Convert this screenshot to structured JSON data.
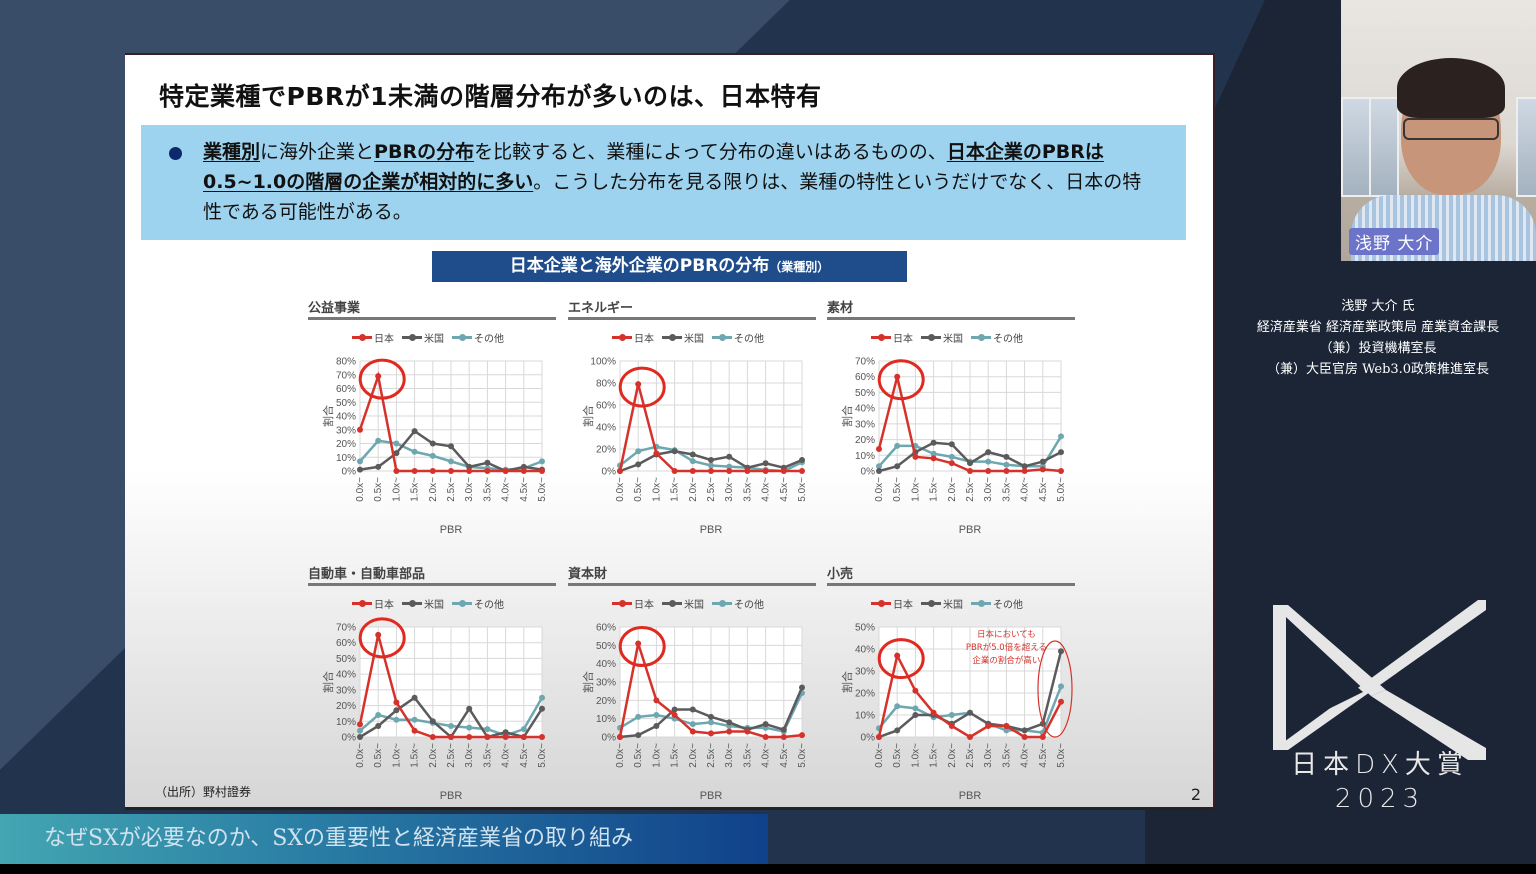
{
  "slide": {
    "title": "特定業種でPBRが1未満の階層分布が多いのは、日本特有",
    "callout": {
      "seg1_bold": "業種別",
      "seg2": "に海外企業と",
      "seg3_bold": "PBRの分布",
      "seg4": "を比較すると、業種によって分布の違いはあるものの、",
      "seg5_bold": "日本企業のPBRは0.5~1.0の階層の企業が相対的に多い",
      "seg6": "。こうした分布を見る限りは、業種の特性というだけでなく、日本の特性である可能性がある。"
    },
    "chart_banner": "日本企業と海外企業のPBRの分布",
    "chart_banner_small": "（業種別）",
    "source": "（出所）野村證券",
    "page_number": "2"
  },
  "chart_data": [
    {
      "type": "line",
      "title": "公益事業",
      "xlabel": "PBR",
      "ylabel": "割合",
      "ylim": [
        0,
        80
      ],
      "yticks": [
        0,
        10,
        20,
        30,
        40,
        50,
        60,
        70,
        80
      ],
      "categories": [
        "0.0x~",
        "0.5x~",
        "1.0x~",
        "1.5x~",
        "2.0x~",
        "2.5x~",
        "3.0x~",
        "3.5x~",
        "4.0x~",
        "4.5x~",
        "5.0x~"
      ],
      "series": [
        {
          "name": "日本",
          "color": "#d6322c",
          "values": [
            30,
            69,
            0,
            0,
            0,
            0,
            0,
            0,
            0,
            0,
            0
          ]
        },
        {
          "name": "米国",
          "color": "#5b5b5b",
          "values": [
            1,
            3,
            13,
            29,
            20,
            18,
            3,
            6,
            0,
            3,
            1
          ]
        },
        {
          "name": "その他",
          "color": "#6ea7b0",
          "values": [
            7,
            22,
            20,
            14,
            11,
            7,
            3,
            2,
            1,
            2,
            7
          ]
        }
      ],
      "highlight_index": 1
    },
    {
      "type": "line",
      "title": "エネルギー",
      "xlabel": "PBR",
      "ylabel": "割合",
      "ylim": [
        0,
        100
      ],
      "yticks": [
        0,
        20,
        40,
        60,
        80,
        100
      ],
      "categories": [
        "0.0x~",
        "0.5x~",
        "1.0x~",
        "1.5x~",
        "2.0x~",
        "2.5x~",
        "3.0x~",
        "3.5x~",
        "4.0x~",
        "4.5x~",
        "5.0x~"
      ],
      "series": [
        {
          "name": "日本",
          "color": "#d6322c",
          "values": [
            0,
            79,
            16,
            0,
            0,
            0,
            0,
            0,
            0,
            0,
            0
          ]
        },
        {
          "name": "米国",
          "color": "#5b5b5b",
          "values": [
            0,
            6,
            15,
            18,
            15,
            10,
            13,
            3,
            7,
            3,
            10
          ]
        },
        {
          "name": "その他",
          "color": "#6ea7b0",
          "values": [
            5,
            18,
            22,
            19,
            9,
            5,
            4,
            3,
            1,
            0,
            8
          ]
        }
      ],
      "highlight_index": 1
    },
    {
      "type": "line",
      "title": "素材",
      "xlabel": "PBR",
      "ylabel": "割合",
      "ylim": [
        0,
        70
      ],
      "yticks": [
        0,
        10,
        20,
        30,
        40,
        50,
        60,
        70
      ],
      "categories": [
        "0.0x~",
        "0.5x~",
        "1.0x~",
        "1.5x~",
        "2.0x~",
        "2.5x~",
        "3.0x~",
        "3.5x~",
        "4.0x~",
        "4.5x~",
        "5.0x~"
      ],
      "series": [
        {
          "name": "日本",
          "color": "#d6322c",
          "values": [
            14,
            60,
            9,
            8,
            5,
            0,
            0,
            0,
            0,
            1,
            0
          ]
        },
        {
          "name": "米国",
          "color": "#5b5b5b",
          "values": [
            0,
            3,
            12,
            18,
            17,
            5,
            12,
            9,
            3,
            6,
            12
          ]
        },
        {
          "name": "その他",
          "color": "#6ea7b0",
          "values": [
            3,
            16,
            16,
            11,
            9,
            6,
            6,
            4,
            3,
            3,
            22
          ]
        }
      ],
      "highlight_index": 1
    },
    {
      "type": "line",
      "title": "自動車・自動車部品",
      "xlabel": "PBR",
      "ylabel": "割合",
      "ylim": [
        0,
        70
      ],
      "yticks": [
        0,
        10,
        20,
        30,
        40,
        50,
        60,
        70
      ],
      "categories": [
        "0.0x~",
        "0.5x~",
        "1.0x~",
        "1.5x~",
        "2.0x~",
        "2.5x~",
        "3.0x~",
        "3.5x~",
        "4.0x~",
        "4.5x~",
        "5.0x~"
      ],
      "series": [
        {
          "name": "日本",
          "color": "#d6322c",
          "values": [
            8,
            65,
            22,
            4,
            0,
            0,
            0,
            0,
            0,
            0,
            0
          ]
        },
        {
          "name": "米国",
          "color": "#5b5b5b",
          "values": [
            0,
            7,
            17,
            25,
            10,
            0,
            18,
            0,
            3,
            0,
            18
          ]
        },
        {
          "name": "その他",
          "color": "#6ea7b0",
          "values": [
            4,
            14,
            11,
            11,
            9,
            7,
            6,
            5,
            1,
            5,
            25
          ]
        }
      ],
      "highlight_index": 1
    },
    {
      "type": "line",
      "title": "資本財",
      "xlabel": "PBR",
      "ylabel": "割合",
      "ylim": [
        0,
        60
      ],
      "yticks": [
        0,
        10,
        20,
        30,
        40,
        50,
        60
      ],
      "categories": [
        "0.0x~",
        "0.5x~",
        "1.0x~",
        "1.5x~",
        "2.0x~",
        "2.5x~",
        "3.0x~",
        "3.5x~",
        "4.0x~",
        "4.5x~",
        "5.0x~"
      ],
      "series": [
        {
          "name": "日本",
          "color": "#d6322c",
          "values": [
            0,
            51,
            20,
            12,
            3,
            2,
            3,
            3,
            0,
            0,
            1
          ]
        },
        {
          "name": "米国",
          "color": "#5b5b5b",
          "values": [
            0,
            1,
            6,
            15,
            15,
            11,
            8,
            4,
            7,
            4,
            27
          ]
        },
        {
          "name": "その他",
          "color": "#6ea7b0",
          "values": [
            5,
            11,
            12,
            10,
            7,
            8,
            6,
            5,
            5,
            3,
            24
          ]
        }
      ],
      "highlight_index": 1
    },
    {
      "type": "line",
      "title": "小売",
      "xlabel": "PBR",
      "ylabel": "割合",
      "ylim": [
        0,
        50
      ],
      "yticks": [
        0,
        10,
        20,
        30,
        40,
        50
      ],
      "categories": [
        "0.0x~",
        "0.5x~",
        "1.0x~",
        "1.5x~",
        "2.0x~",
        "2.5x~",
        "3.0x~",
        "3.5x~",
        "4.0x~",
        "4.5x~",
        "5.0x~"
      ],
      "series": [
        {
          "name": "日本",
          "color": "#d6322c",
          "values": [
            0,
            37,
            21,
            11,
            5,
            0,
            5,
            5,
            0,
            0,
            16
          ]
        },
        {
          "name": "米国",
          "color": "#5b5b5b",
          "values": [
            0,
            3,
            10,
            10,
            6,
            11,
            6,
            5,
            3,
            6,
            39
          ]
        },
        {
          "name": "その他",
          "color": "#6ea7b0",
          "values": [
            4,
            14,
            13,
            9,
            10,
            11,
            6,
            3,
            3,
            2,
            23
          ]
        }
      ],
      "highlight_index": 1,
      "annotation": "日本においてもPBRが5.0倍を超える企業の割合が高い",
      "annotation_lines": [
        "日本においても",
        "PBRが5.0倍を超える",
        "企業の割合が高い"
      ]
    }
  ],
  "video": {
    "speaker_tag": "浅野 大介",
    "speaker_info": [
      "浅野 大介 氏",
      "経済産業省 経済産業政策局 産業資金課長",
      "（兼）投資機構室長",
      "（兼）大臣官房 Web3.0政策推進室長"
    ]
  },
  "branding": {
    "logo_line1": "日本DX大賞",
    "logo_line2": "2023"
  },
  "caption": "なぜSXが必要なのか、SXの重要性と経済産業省の取り組み"
}
